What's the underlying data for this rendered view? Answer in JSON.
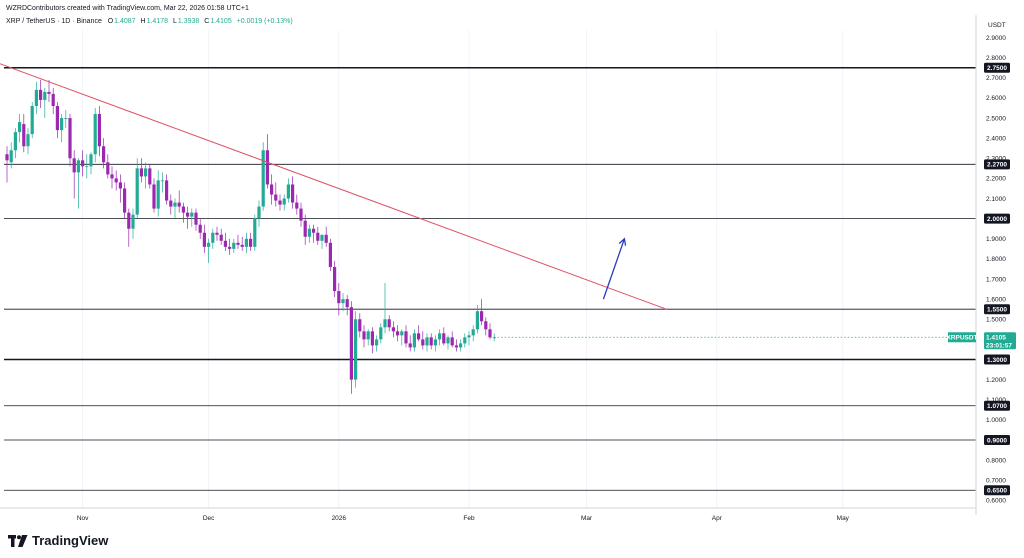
{
  "header": {
    "caption": "WZRDContributors created with TradingView.com, Mar 22, 2026 01:58 UTC+1",
    "symbol": "XRP / TetherUS · 1D · Binance",
    "o_label": "O",
    "o_value": "1.4087",
    "h_label": "H",
    "h_value": "1.4178",
    "l_label": "L",
    "l_value": "1.3938",
    "c_label": "C",
    "c_value": "1.4105",
    "change": "+0.0019 (+0.13%)"
  },
  "brand": {
    "name": "TradingView"
  },
  "colors": {
    "up": "#22ab94",
    "down": "#9c27b0",
    "trendline": "#e05062",
    "arrow": "#2a3cbd",
    "level_line": "#131722",
    "price_label": "#22ab94"
  },
  "chart_data": {
    "type": "candlestick",
    "symbol": "XRPUSDT",
    "currency": "USDT",
    "y_range": [
      0.6,
      2.95
    ],
    "y_ticks": [
      "2.9000",
      "2.8000",
      "2.7000",
      "2.6000",
      "2.5000",
      "2.4000",
      "2.3000",
      "2.2000",
      "2.1000",
      "1.9000",
      "1.8000",
      "1.7000",
      "1.6000",
      "1.5000",
      "1.4000",
      "1.2000",
      "1.1000",
      "1.0000",
      "0.8000",
      "0.7000",
      "0.6000"
    ],
    "x_labels": [
      "Nov",
      "Dec",
      "2026",
      "Feb",
      "Mar",
      "Apr",
      "May"
    ],
    "levels": [
      {
        "value": 2.75,
        "label": "2.7500",
        "style": "thick"
      },
      {
        "value": 2.27,
        "label": "2.2700",
        "style": "thin"
      },
      {
        "value": 2.0,
        "label": "2.0000",
        "style": "thin"
      },
      {
        "value": 1.55,
        "label": "1.5500",
        "style": "thin"
      },
      {
        "value": 1.3,
        "label": "1.3000",
        "style": "thick"
      },
      {
        "value": 1.07,
        "label": "1.0700",
        "style": "thin"
      },
      {
        "value": 0.9,
        "label": "0.9000",
        "style": "thin"
      },
      {
        "value": 0.65,
        "label": "0.6500",
        "style": "thin"
      }
    ],
    "current_price": {
      "value": 1.4105,
      "label": "XRPUSDT",
      "price": "1.4105",
      "countdown": "23:01:57"
    },
    "trendline": {
      "start": {
        "day": -29,
        "price": 2.98
      },
      "end": {
        "day": 157,
        "price": 1.55
      }
    },
    "arrow": {
      "start": {
        "day": 142,
        "price": 1.6
      },
      "end": {
        "day": 147,
        "price": 1.9
      }
    },
    "candles": [
      [
        2.32,
        2.36,
        2.18,
        2.29
      ],
      [
        2.28,
        2.38,
        2.25,
        2.34
      ],
      [
        2.34,
        2.45,
        2.3,
        2.43
      ],
      [
        2.43,
        2.52,
        2.38,
        2.48
      ],
      [
        2.47,
        2.52,
        2.33,
        2.36
      ],
      [
        2.36,
        2.45,
        2.32,
        2.42
      ],
      [
        2.42,
        2.58,
        2.4,
        2.56
      ],
      [
        2.56,
        2.68,
        2.52,
        2.64
      ],
      [
        2.64,
        2.69,
        2.55,
        2.59
      ],
      [
        2.59,
        2.65,
        2.5,
        2.63
      ],
      [
        2.63,
        2.69,
        2.58,
        2.62
      ],
      [
        2.62,
        2.65,
        2.52,
        2.56
      ],
      [
        2.56,
        2.58,
        2.4,
        2.44
      ],
      [
        2.44,
        2.52,
        2.38,
        2.5
      ],
      [
        2.5,
        2.54,
        2.45,
        2.5
      ],
      [
        2.5,
        2.52,
        2.26,
        2.3
      ],
      [
        2.3,
        2.34,
        2.1,
        2.23
      ],
      [
        2.23,
        2.3,
        2.05,
        2.29
      ],
      [
        2.29,
        2.34,
        2.21,
        2.26
      ],
      [
        2.26,
        2.32,
        2.2,
        2.26
      ],
      [
        2.26,
        2.33,
        2.22,
        2.32
      ],
      [
        2.32,
        2.55,
        2.28,
        2.52
      ],
      [
        2.52,
        2.56,
        2.31,
        2.36
      ],
      [
        2.36,
        2.4,
        2.25,
        2.28
      ],
      [
        2.28,
        2.32,
        2.2,
        2.22
      ],
      [
        2.22,
        2.26,
        2.15,
        2.2
      ],
      [
        2.2,
        2.24,
        2.14,
        2.18
      ],
      [
        2.18,
        2.22,
        2.08,
        2.15
      ],
      [
        2.15,
        2.18,
        2.0,
        2.03
      ],
      [
        2.03,
        2.05,
        1.86,
        1.95
      ],
      [
        1.95,
        2.05,
        1.9,
        2.02
      ],
      [
        2.02,
        2.3,
        2.0,
        2.25
      ],
      [
        2.25,
        2.3,
        2.18,
        2.21
      ],
      [
        2.21,
        2.28,
        2.15,
        2.25
      ],
      [
        2.25,
        2.27,
        2.15,
        2.17
      ],
      [
        2.17,
        2.2,
        2.03,
        2.05
      ],
      [
        2.05,
        2.24,
        2.01,
        2.19
      ],
      [
        2.19,
        2.23,
        2.13,
        2.19
      ],
      [
        2.19,
        2.22,
        2.07,
        2.09
      ],
      [
        2.09,
        2.12,
        2.02,
        2.06
      ],
      [
        2.06,
        2.1,
        2.0,
        2.08
      ],
      [
        2.08,
        2.14,
        2.03,
        2.06
      ],
      [
        2.06,
        2.08,
        1.98,
        2.03
      ],
      [
        2.03,
        2.06,
        1.95,
        2.01
      ],
      [
        2.01,
        2.05,
        1.96,
        2.03
      ],
      [
        2.03,
        2.05,
        1.94,
        1.97
      ],
      [
        1.97,
        2.0,
        1.9,
        1.93
      ],
      [
        1.93,
        1.97,
        1.83,
        1.86
      ],
      [
        1.86,
        1.9,
        1.78,
        1.88
      ],
      [
        1.88,
        1.95,
        1.85,
        1.93
      ],
      [
        1.93,
        1.96,
        1.89,
        1.92
      ],
      [
        1.92,
        1.95,
        1.87,
        1.89
      ],
      [
        1.89,
        1.93,
        1.84,
        1.86
      ],
      [
        1.86,
        1.9,
        1.82,
        1.85
      ],
      [
        1.85,
        1.9,
        1.83,
        1.88
      ],
      [
        1.88,
        1.92,
        1.85,
        1.87
      ],
      [
        1.87,
        1.91,
        1.84,
        1.86
      ],
      [
        1.86,
        1.93,
        1.83,
        1.9
      ],
      [
        1.9,
        1.93,
        1.84,
        1.86
      ],
      [
        1.86,
        2.02,
        1.84,
        2.0
      ],
      [
        2.0,
        2.09,
        1.96,
        2.06
      ],
      [
        2.06,
        2.38,
        2.04,
        2.34
      ],
      [
        2.34,
        2.42,
        2.15,
        2.17
      ],
      [
        2.17,
        2.22,
        2.07,
        2.12
      ],
      [
        2.12,
        2.18,
        2.06,
        2.09
      ],
      [
        2.09,
        2.12,
        2.04,
        2.07
      ],
      [
        2.07,
        2.12,
        2.04,
        2.1
      ],
      [
        2.1,
        2.2,
        2.08,
        2.17
      ],
      [
        2.17,
        2.21,
        2.05,
        2.08
      ],
      [
        2.08,
        2.12,
        2.02,
        2.05
      ],
      [
        2.05,
        2.08,
        1.96,
        1.99
      ],
      [
        1.99,
        2.02,
        1.87,
        1.91
      ],
      [
        1.91,
        1.97,
        1.88,
        1.95
      ],
      [
        1.95,
        1.97,
        1.88,
        1.93
      ],
      [
        1.93,
        1.96,
        1.87,
        1.89
      ],
      [
        1.89,
        1.92,
        1.85,
        1.92
      ],
      [
        1.92,
        1.96,
        1.86,
        1.88
      ],
      [
        1.88,
        1.9,
        1.74,
        1.76
      ],
      [
        1.76,
        1.79,
        1.61,
        1.64
      ],
      [
        1.64,
        1.68,
        1.52,
        1.58
      ],
      [
        1.58,
        1.63,
        1.54,
        1.6
      ],
      [
        1.6,
        1.62,
        1.52,
        1.56
      ],
      [
        1.56,
        1.59,
        1.13,
        1.2
      ],
      [
        1.2,
        1.54,
        1.16,
        1.5
      ],
      [
        1.5,
        1.53,
        1.41,
        1.44
      ],
      [
        1.44,
        1.47,
        1.36,
        1.4
      ],
      [
        1.4,
        1.45,
        1.37,
        1.44
      ],
      [
        1.44,
        1.46,
        1.33,
        1.37
      ],
      [
        1.37,
        1.42,
        1.34,
        1.4
      ],
      [
        1.4,
        1.48,
        1.38,
        1.46
      ],
      [
        1.46,
        1.68,
        1.43,
        1.5
      ],
      [
        1.5,
        1.52,
        1.44,
        1.46
      ],
      [
        1.46,
        1.49,
        1.41,
        1.44
      ],
      [
        1.44,
        1.47,
        1.39,
        1.42
      ],
      [
        1.42,
        1.45,
        1.37,
        1.44
      ],
      [
        1.44,
        1.47,
        1.36,
        1.38
      ],
      [
        1.38,
        1.42,
        1.34,
        1.36
      ],
      [
        1.36,
        1.45,
        1.34,
        1.43
      ],
      [
        1.43,
        1.47,
        1.39,
        1.4
      ],
      [
        1.4,
        1.44,
        1.35,
        1.37
      ],
      [
        1.37,
        1.43,
        1.34,
        1.41
      ],
      [
        1.41,
        1.43,
        1.35,
        1.37
      ],
      [
        1.37,
        1.42,
        1.34,
        1.4
      ],
      [
        1.4,
        1.45,
        1.37,
        1.43
      ],
      [
        1.43,
        1.46,
        1.37,
        1.38
      ],
      [
        1.38,
        1.42,
        1.35,
        1.41
      ],
      [
        1.41,
        1.44,
        1.36,
        1.37
      ],
      [
        1.37,
        1.4,
        1.34,
        1.36
      ],
      [
        1.36,
        1.4,
        1.34,
        1.38
      ],
      [
        1.38,
        1.43,
        1.36,
        1.41
      ],
      [
        1.41,
        1.44,
        1.37,
        1.42
      ],
      [
        1.42,
        1.47,
        1.39,
        1.45
      ],
      [
        1.45,
        1.57,
        1.43,
        1.54
      ],
      [
        1.54,
        1.6,
        1.47,
        1.49
      ],
      [
        1.49,
        1.51,
        1.42,
        1.45
      ],
      [
        1.45,
        1.48,
        1.4,
        1.41
      ],
      [
        1.41,
        1.43,
        1.39,
        1.41
      ]
    ],
    "x_label_days": [
      18,
      48,
      79,
      110,
      138,
      169,
      199
    ]
  }
}
